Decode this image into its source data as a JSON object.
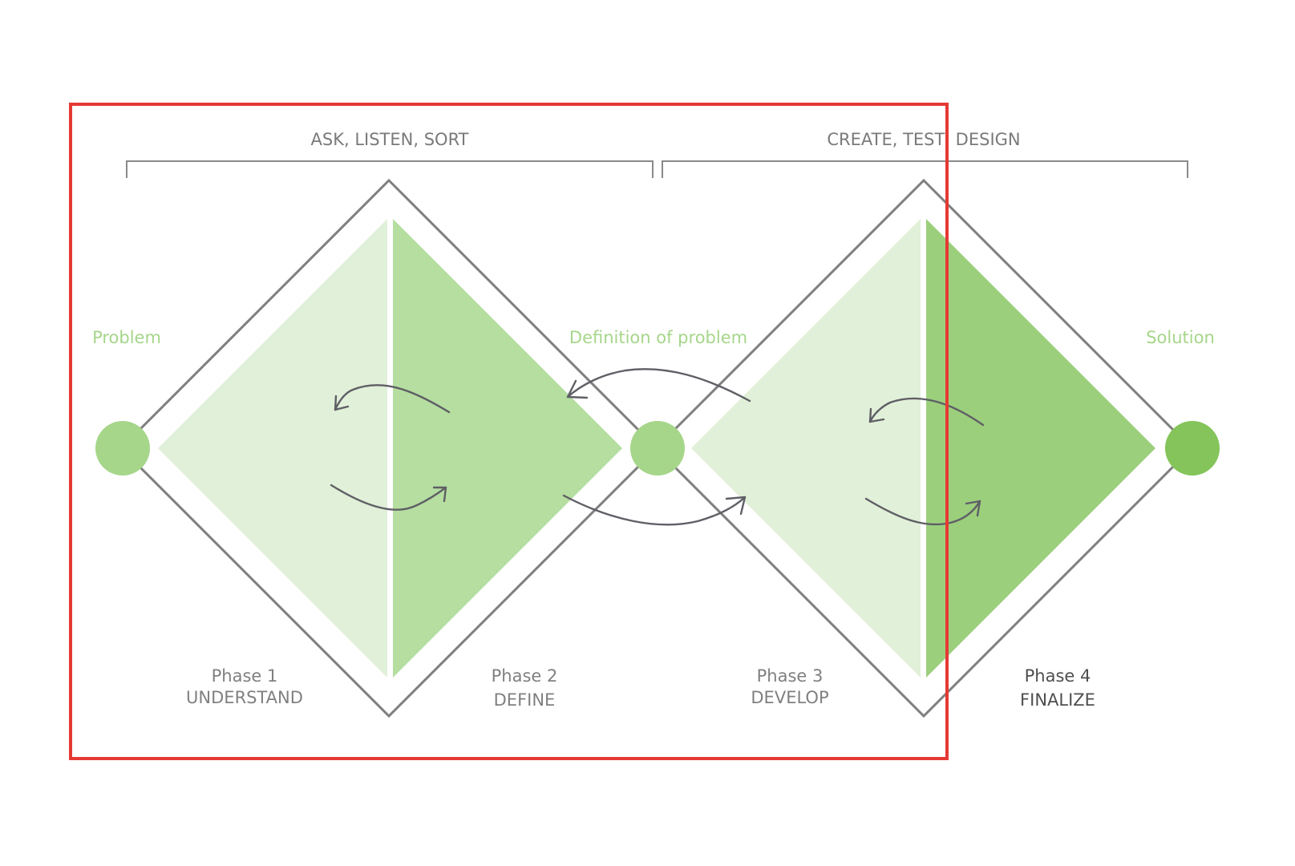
{
  "brackets": [
    {
      "label": "ASK, LISTEN, SORT"
    },
    {
      "label": "CREATE, TEST, DESIGN"
    }
  ],
  "milestones": [
    {
      "label": "Problem",
      "color": "#a6d68a"
    },
    {
      "label": "Definition of problem",
      "color": "#a6d68a"
    },
    {
      "label": "Solution",
      "color": "#84c45a"
    }
  ],
  "phases": [
    {
      "number": "Phase 1",
      "name": "UNDERSTAND"
    },
    {
      "number": "Phase 2",
      "name": "DEFINE"
    },
    {
      "number": "Phase 3",
      "name": "DEVELOP"
    },
    {
      "number": "Phase 4",
      "name": "FINALIZE"
    }
  ],
  "colors": {
    "diverge_fill": "#e1f0d8",
    "converge_fill_1": "#b5dea0",
    "converge_fill_2": "#9ccf7c",
    "outline": "#7f7f7f",
    "arrow": "#5f5f66",
    "highlight_box": "#e53935",
    "milestone_text": "#a6d68a"
  }
}
